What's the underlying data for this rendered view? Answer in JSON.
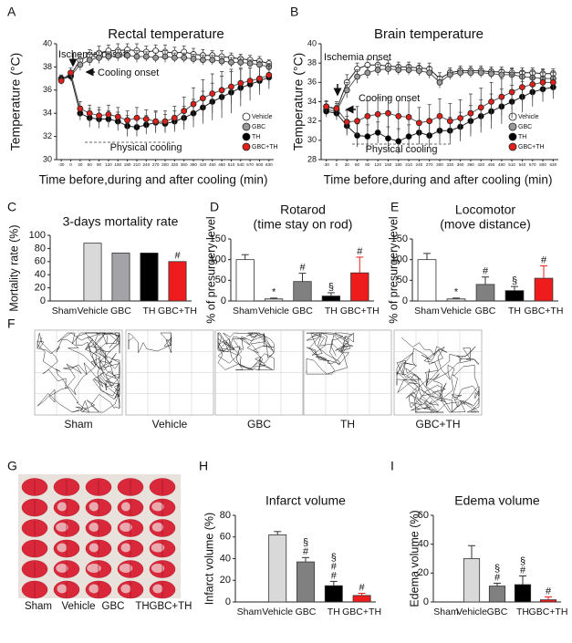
{
  "chart_data": [
    {
      "type": "line",
      "panel": "A",
      "title": "Rectal temperature",
      "y_label": "Temperature (°C)",
      "x_label": "Time before,during and after cooling (min)",
      "annotations": [
        "Ischemia onset",
        "Cooling onset",
        "Physical cooling"
      ],
      "cooling_window": [
        45,
        330
      ],
      "x": [
        -30,
        0,
        30,
        60,
        90,
        120,
        150,
        180,
        210,
        240,
        270,
        300,
        330,
        360,
        390,
        420,
        450,
        480,
        510,
        540,
        570,
        600,
        630
      ],
      "xticks": [
        -30,
        0,
        30,
        60,
        90,
        120,
        150,
        180,
        210,
        240,
        270,
        300,
        330,
        360,
        390,
        420,
        450,
        480,
        510,
        540,
        570,
        600,
        630
      ],
      "xlim": [
        -45,
        645
      ],
      "ylim": [
        30,
        40
      ],
      "yticks": [
        30,
        32,
        34,
        36,
        38,
        40
      ],
      "series": [
        {
          "name": "Vehicle",
          "color": "#ffffff",
          "values": [
            37,
            37.3,
            38.6,
            39,
            39.2,
            39.4,
            39.4,
            39.5,
            39.4,
            39.3,
            39.4,
            39.3,
            39.2,
            39.3,
            39.1,
            39,
            39,
            38.9,
            38.8,
            38.7,
            38.6,
            38.5,
            38.3
          ],
          "errors": [
            0.3,
            0.4,
            0.5,
            0.5,
            0.6,
            0.5,
            0.6,
            0.5,
            0.6,
            0.5,
            0.5,
            0.6,
            0.5,
            0.5,
            0.5,
            0.5,
            0.4,
            0.5,
            0.4,
            0.4,
            0.4,
            0.4,
            0.3
          ]
        },
        {
          "name": "GBC",
          "color": "#999999",
          "values": [
            36.9,
            37.2,
            38.2,
            38.6,
            38.8,
            38.9,
            39,
            39,
            38.9,
            38.9,
            38.8,
            38.9,
            38.8,
            38.8,
            38.7,
            38.6,
            38.6,
            38.5,
            38.4,
            38.4,
            38.3,
            38.2,
            38
          ],
          "errors": [
            0.3,
            0.4,
            0.5,
            0.5,
            0.5,
            0.4,
            0.5,
            0.4,
            0.5,
            0.4,
            0.4,
            0.5,
            0.4,
            0.4,
            0.4,
            0.4,
            0.4,
            0.4,
            0.4,
            0.4,
            0.3,
            0.3,
            0.3
          ]
        },
        {
          "name": "TH",
          "color": "#000000",
          "values": [
            37,
            37.2,
            34,
            33.6,
            33.5,
            33.5,
            33.3,
            32.9,
            32.8,
            33,
            33.2,
            33.1,
            33.3,
            33.6,
            34,
            34.5,
            35,
            35.4,
            35.8,
            36.2,
            36.5,
            36.8,
            37.1
          ],
          "errors": [
            0.3,
            0.4,
            0.6,
            0.8,
            0.8,
            0.7,
            0.8,
            0.9,
            0.8,
            0.8,
            0.9,
            0.8,
            0.9,
            1,
            1.2,
            1.4,
            1.6,
            1.8,
            1.8,
            1.6,
            1.4,
            1.2,
            1
          ]
        },
        {
          "name": "GBC+TH",
          "color": "#e0201b",
          "values": [
            36.8,
            37.5,
            34.4,
            34,
            33.8,
            33.9,
            33.7,
            33.4,
            33.6,
            33.5,
            33.3,
            33.3,
            33.6,
            34.2,
            34.8,
            35.3,
            35.7,
            36,
            36.3,
            36.6,
            36.8,
            37,
            37.3
          ],
          "errors": [
            0.3,
            0.4,
            0.6,
            0.7,
            0.7,
            0.8,
            0.8,
            0.8,
            0.9,
            0.8,
            0.9,
            0.9,
            1,
            1.2,
            1.4,
            1.6,
            1.7,
            1.6,
            1.5,
            1.3,
            1.1,
            1,
            0.8
          ]
        }
      ]
    },
    {
      "type": "line",
      "panel": "B",
      "title": "Brain temperature",
      "y_label": "Temperature (°C)",
      "x_label": "Time before,during and after cooling (min)",
      "annotations": [
        "Ischemia onset",
        "Cooling onset",
        "Physical cooling"
      ],
      "cooling_window": [
        45,
        330
      ],
      "x": [
        -30,
        0,
        30,
        60,
        90,
        120,
        150,
        180,
        210,
        240,
        270,
        300,
        330,
        360,
        390,
        420,
        450,
        480,
        510,
        540,
        570,
        600,
        630
      ],
      "xticks": [
        -30,
        0,
        30,
        60,
        90,
        120,
        150,
        180,
        210,
        240,
        270,
        300,
        330,
        360,
        390,
        420,
        450,
        480,
        510,
        540,
        570,
        600,
        630
      ],
      "xlim": [
        -45,
        645
      ],
      "ylim": [
        28,
        40
      ],
      "yticks": [
        28,
        30,
        32,
        34,
        36,
        38,
        40
      ],
      "series": [
        {
          "name": "Vehicle",
          "color": "#ffffff",
          "values": [
            33.5,
            33.2,
            36,
            37.4,
            37.8,
            37.8,
            37.7,
            37.6,
            37.6,
            37.5,
            37.4,
            36.4,
            37,
            37.2,
            37.2,
            37.2,
            37.1,
            37.1,
            37,
            37,
            37,
            36.9,
            36.9
          ],
          "errors": [
            0.5,
            0.6,
            0.8,
            0.6,
            0.6,
            0.5,
            0.6,
            0.5,
            0.5,
            0.5,
            0.6,
            0.6,
            0.5,
            0.5,
            0.5,
            0.5,
            0.5,
            0.5,
            0.5,
            0.5,
            0.5,
            0.5,
            0.5
          ]
        },
        {
          "name": "GBC",
          "color": "#999999",
          "values": [
            33.2,
            33,
            35.2,
            36.6,
            37,
            37.3,
            37.4,
            37.3,
            37.3,
            37.2,
            37,
            36,
            36.8,
            37,
            37,
            37,
            36.9,
            36.8,
            36.8,
            36.6,
            36.5,
            36.4,
            36.4
          ],
          "errors": [
            0.5,
            0.6,
            0.8,
            0.7,
            0.6,
            0.6,
            0.6,
            0.5,
            0.5,
            0.5,
            0.6,
            0.6,
            0.5,
            0.5,
            0.5,
            0.5,
            0.5,
            0.5,
            0.6,
            0.6,
            0.6,
            0.6,
            0.6
          ]
        },
        {
          "name": "TH",
          "color": "#000000",
          "values": [
            33,
            32.8,
            31.5,
            30.5,
            30.4,
            30.8,
            30.2,
            29.9,
            30.4,
            30.8,
            30.5,
            31,
            31,
            31.4,
            32,
            32.5,
            33,
            33.5,
            34,
            34.5,
            35,
            35.3,
            35.5
          ],
          "errors": [
            0.6,
            0.7,
            1,
            1.2,
            1.2,
            1.1,
            1.2,
            1.3,
            1.2,
            1.2,
            1.3,
            1.3,
            1.4,
            1.5,
            1.6,
            1.7,
            1.8,
            1.8,
            1.7,
            1.6,
            1.5,
            1.3,
            1.2
          ]
        },
        {
          "name": "GBC+TH",
          "color": "#e0201b",
          "values": [
            33.5,
            33.3,
            31.9,
            32,
            32.5,
            32.7,
            32.8,
            32.5,
            32.4,
            31.8,
            32,
            32.5,
            32,
            32.3,
            32.8,
            33.4,
            34,
            34.5,
            35,
            35.5,
            35.8,
            36,
            36
          ],
          "errors": [
            0.6,
            0.7,
            1.2,
            1.5,
            1.6,
            1.7,
            1.6,
            1.6,
            1.7,
            1.6,
            1.7,
            1.8,
            1.8,
            1.9,
            2,
            2,
            2,
            1.9,
            1.8,
            1.6,
            1.5,
            1.3,
            1.2
          ]
        }
      ]
    },
    {
      "type": "bar",
      "panel": "C",
      "title": "3-days mortality rate",
      "y_label": "Mortality rate (%)",
      "categories": [
        "Sham",
        "Vehicle",
        "GBC",
        "TH",
        "GBC+TH"
      ],
      "values": [
        0,
        88,
        73,
        73,
        60
      ],
      "colors": [
        "#ffffff",
        "#d9d9d9",
        "#a3a3a8",
        "#000000",
        "#ee1c1c"
      ],
      "markers": [
        null,
        null,
        null,
        null,
        [
          "#"
        ]
      ],
      "ylim": [
        0,
        100
      ],
      "yticks": [
        0,
        20,
        40,
        60,
        80,
        100
      ]
    },
    {
      "type": "bar",
      "panel": "D",
      "title": "Rotarod",
      "subtitle": "(time stay on rod)",
      "y_label": "% of presurgery level",
      "categories": [
        "Sham",
        "Vehicle",
        "GBC",
        "TH",
        "GBC+TH"
      ],
      "values": [
        100,
        5,
        47,
        12,
        68
      ],
      "errors": [
        12,
        2,
        20,
        8,
        38
      ],
      "colors": [
        "#ffffff",
        "#d9d9d9",
        "#808080",
        "#000000",
        "#ee1c1c"
      ],
      "markers": [
        null,
        [
          "*"
        ],
        [
          "#"
        ],
        [
          "§"
        ],
        [
          "#"
        ]
      ],
      "ylim": [
        0,
        150
      ],
      "yticks": [
        0,
        50,
        100,
        150
      ]
    },
    {
      "type": "bar",
      "panel": "E",
      "title": "Locomotor",
      "subtitle": "(move distance)",
      "y_label": "% of presurgery level",
      "categories": [
        "Sham",
        "Vehicle",
        "GBC",
        "TH",
        "GBC+TH"
      ],
      "values": [
        100,
        5,
        40,
        25,
        55
      ],
      "errors": [
        15,
        2,
        18,
        10,
        30
      ],
      "colors": [
        "#ffffff",
        "#d9d9d9",
        "#808080",
        "#000000",
        "#ee1c1c"
      ],
      "markers": [
        null,
        [
          "*"
        ],
        [
          "#"
        ],
        [
          "§"
        ],
        [
          "#"
        ]
      ],
      "ylim": [
        0,
        150
      ],
      "yticks": [
        0,
        50,
        100,
        150
      ]
    },
    {
      "type": "bar",
      "panel": "H",
      "title": "Infarct volume",
      "y_label": "Infarct volume (%)",
      "categories": [
        "Sham",
        "Vehicle",
        "GBC",
        "TH",
        "GBC+TH"
      ],
      "values": [
        0,
        62,
        37,
        15,
        6
      ],
      "errors": [
        0,
        3,
        4,
        4,
        2
      ],
      "colors": [
        "#ffffff",
        "#d9d9d9",
        "#808080",
        "#000000",
        "#ee1c1c"
      ],
      "markers": [
        null,
        null,
        [
          "#",
          "§"
        ],
        [
          "#",
          "#",
          "§"
        ],
        [
          "#"
        ]
      ],
      "ylim": [
        0,
        80
      ],
      "yticks": [
        0,
        20,
        40,
        60,
        80
      ]
    },
    {
      "type": "bar",
      "panel": "I",
      "title": "Edema volume",
      "y_label": "Edema volume (%)",
      "categories": [
        "Sham",
        "Vehicle",
        "GBC",
        "TH",
        "GBC+TH"
      ],
      "values": [
        0,
        30,
        11,
        12,
        1.5
      ],
      "errors": [
        0,
        9,
        2,
        6,
        2
      ],
      "colors": [
        "#ffffff",
        "#d9d9d9",
        "#808080",
        "#000000",
        "#ee1c1c"
      ],
      "markers": [
        null,
        null,
        [
          "#",
          "§"
        ],
        [
          "#",
          "§"
        ],
        [
          "#"
        ]
      ],
      "ylim": [
        0,
        60
      ],
      "yticks": [
        0,
        20,
        40,
        60
      ]
    }
  ],
  "track_panel": {
    "letter": "F",
    "labels": [
      "Sham",
      "Vehicle",
      "GBC",
      "TH",
      "GBC+TH"
    ]
  },
  "photo_panel": {
    "letter": "G",
    "labels": [
      "Sham",
      "Vehicle",
      "GBC",
      "TH",
      "GBC+TH"
    ]
  }
}
